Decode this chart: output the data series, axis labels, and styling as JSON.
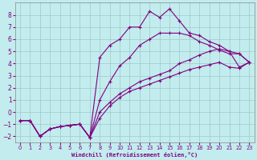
{
  "xlabel": "Windchill (Refroidissement éolien,°C)",
  "xlim": [
    -0.5,
    23.5
  ],
  "ylim": [
    -2.5,
    9.0
  ],
  "xticks": [
    0,
    1,
    2,
    3,
    4,
    5,
    6,
    7,
    8,
    9,
    10,
    11,
    12,
    13,
    14,
    15,
    16,
    17,
    18,
    19,
    20,
    21,
    22,
    23
  ],
  "yticks": [
    -2,
    -1,
    0,
    1,
    2,
    3,
    4,
    5,
    6,
    7,
    8
  ],
  "bg_color": "#c2ecee",
  "line_color": "#800080",
  "grid_color": "#a0c8ca",
  "curves": [
    {
      "x": [
        0,
        1,
        2,
        3,
        4,
        5,
        6,
        7,
        8,
        9,
        10,
        11,
        12,
        13,
        14,
        15,
        16,
        17,
        18,
        19,
        20,
        21,
        22,
        23
      ],
      "y": [
        -0.7,
        -0.7,
        -2.0,
        -1.4,
        -1.2,
        -1.1,
        -1.0,
        -2.1,
        -0.5,
        0.5,
        1.2,
        1.7,
        2.0,
        2.3,
        2.6,
        2.9,
        3.2,
        3.5,
        3.7,
        3.9,
        4.1,
        3.7,
        3.6,
        4.1
      ],
      "markers": true
    },
    {
      "x": [
        0,
        1,
        2,
        3,
        4,
        5,
        6,
        7,
        8,
        9,
        10,
        11,
        12,
        13,
        14,
        15,
        16,
        17,
        18,
        19,
        20,
        21,
        22,
        23
      ],
      "y": [
        -0.7,
        -0.7,
        -2.0,
        -1.4,
        -1.2,
        -1.1,
        -1.0,
        -2.1,
        0.0,
        0.8,
        1.5,
        2.0,
        2.5,
        2.8,
        3.1,
        3.4,
        4.0,
        4.3,
        4.7,
        5.0,
        5.2,
        5.0,
        3.7,
        4.1
      ],
      "markers": true
    },
    {
      "x": [
        0,
        1,
        2,
        3,
        4,
        5,
        6,
        7,
        8,
        9,
        10,
        11,
        12,
        13,
        14,
        15,
        16,
        17,
        18,
        19,
        20,
        21,
        22,
        23
      ],
      "y": [
        -0.7,
        -0.7,
        -2.0,
        -1.4,
        -1.2,
        -1.1,
        -1.0,
        -2.1,
        1.0,
        2.5,
        3.8,
        4.5,
        5.5,
        6.0,
        6.5,
        6.5,
        6.5,
        6.3,
        5.8,
        5.5,
        5.1,
        4.8,
        4.8,
        4.1
      ],
      "markers": true
    },
    {
      "x": [
        0,
        1,
        2,
        3,
        4,
        5,
        6,
        7,
        8,
        9,
        10,
        11,
        12,
        13,
        14,
        15,
        16,
        17,
        18,
        19,
        20,
        21,
        22,
        23
      ],
      "y": [
        -0.7,
        -0.7,
        -2.0,
        -1.4,
        -1.2,
        -1.1,
        -1.0,
        -2.1,
        4.5,
        5.5,
        6.0,
        7.0,
        7.0,
        8.3,
        7.8,
        8.5,
        7.5,
        6.5,
        6.3,
        5.8,
        5.5,
        5.0,
        4.8,
        4.1
      ],
      "markers": true
    }
  ]
}
